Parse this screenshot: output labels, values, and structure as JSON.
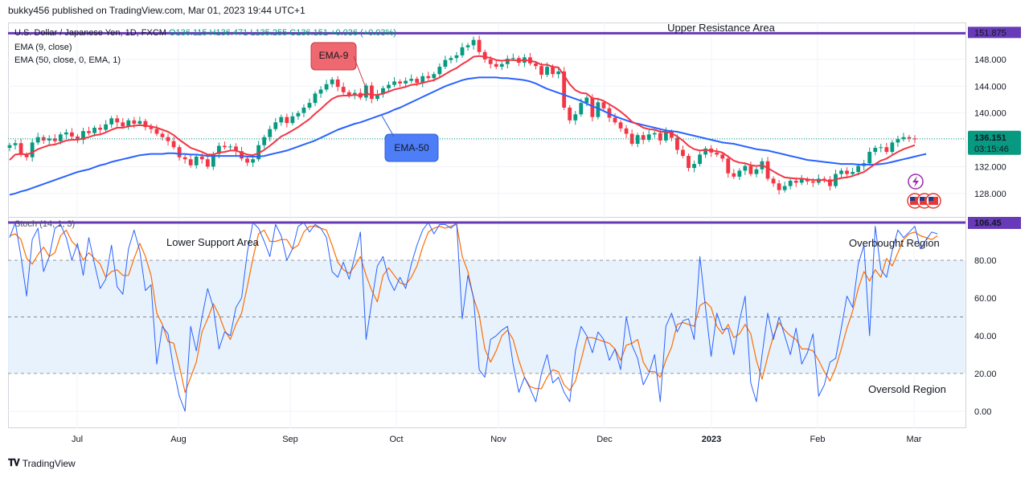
{
  "header": {
    "published_by": "bukky456 published on TradingView.com, Mar 01, 2023 19:44 UTC+1"
  },
  "legend": {
    "symbol": "U.S. Dollar / Japanese Yen, 1D, FXCM",
    "ohlc": "O136.115  H136.471  L135.255  C136.151  +0.036 (+0.03%)",
    "ema9": "EMA (9, close)",
    "ema50": "EMA (50, close, 0, EMA, 1)",
    "stoch": "Stoch (14, 1, 3)"
  },
  "footer": {
    "brand": "TradingView"
  },
  "colors": {
    "up": "#089981",
    "down": "#f23645",
    "ema9": "#f23645",
    "ema50": "#2962ff",
    "resistance": "#673ab7",
    "stoch_k": "#2962ff",
    "stoch_d": "#ff6d00",
    "band": "#e3f0fb"
  },
  "chart_data": [
    {
      "type": "candlestick",
      "title": "U.S. Dollar / Japanese Yen, 1D, FXCM",
      "currency": "JPY",
      "ylim": [
        124.5,
        153.5
      ],
      "y_ticks": [
        128.0,
        132.0,
        136.0,
        140.0,
        144.0,
        148.0
      ],
      "y_tick_labels": [
        "128.000",
        "132.000",
        "136.000",
        "140.000",
        "144.000",
        "148.000"
      ],
      "x_ticks": [
        "Jul",
        "Aug",
        "Sep",
        "Oct",
        "Nov",
        "Dec",
        "2023",
        "Feb",
        "Mar"
      ],
      "last_price": {
        "value": 136.151,
        "label": "136.151",
        "countdown": "03:15:46"
      },
      "resistance_level": {
        "value": 151.9,
        "label": "151.875",
        "annotation": "Upper Resistance Area"
      },
      "callouts": {
        "ema9": "EMA-9",
        "ema50": "EMA-50"
      },
      "series": [
        {
          "name": "Close",
          "values": [
            135.2,
            135.5,
            133.8,
            133.4,
            135.6,
            136.4,
            135.9,
            136.2,
            135.8,
            136.8,
            137.1,
            136.5,
            136.0,
            137.3,
            137.0,
            137.8,
            137.5,
            138.3,
            139.2,
            138.6,
            138.0,
            138.9,
            138.4,
            138.8,
            137.9,
            137.6,
            136.9,
            136.4,
            135.8,
            134.9,
            133.4,
            133.1,
            132.2,
            133.5,
            133.1,
            132.0,
            133.9,
            135.1,
            134.9,
            135.0,
            134.3,
            133.2,
            132.6,
            133.1,
            135.2,
            136.4,
            137.6,
            138.6,
            139.4,
            138.5,
            139.5,
            140.0,
            140.8,
            141.5,
            142.9,
            143.5,
            144.3,
            145.0,
            143.9,
            143.1,
            142.7,
            143.0,
            142.3,
            144.1,
            142.1,
            142.8,
            143.7,
            144.2,
            144.7,
            144.4,
            144.8,
            145.1,
            144.5,
            145.5,
            145.2,
            145.8,
            146.9,
            147.9,
            148.2,
            148.6,
            149.8,
            150.1,
            150.9,
            149.1,
            148.0,
            147.3,
            146.9,
            147.3,
            148.1,
            148.2,
            147.5,
            148.3,
            147.4,
            147.0,
            145.7,
            146.9,
            145.8,
            146.2,
            140.8,
            138.9,
            139.8,
            141.5,
            142.3,
            139.4,
            141.6,
            140.7,
            139.3,
            138.6,
            137.7,
            136.9,
            135.4,
            136.7,
            136.0,
            136.8,
            137.0,
            135.9,
            137.2,
            136.3,
            134.5,
            133.6,
            131.8,
            132.4,
            133.8,
            134.7,
            134.1,
            133.8,
            133.2,
            131.0,
            130.5,
            131.4,
            132.1,
            130.9,
            131.6,
            132.8,
            130.2,
            129.5,
            128.5,
            129.1,
            129.9,
            129.6,
            130.1,
            129.8,
            129.6,
            130.2,
            130.1,
            129.1,
            130.9,
            131.4,
            130.9,
            131.2,
            132.1,
            132.5,
            134.2,
            134.8,
            134.9,
            134.2,
            135.6,
            136.1,
            136.4,
            136.2,
            136.151
          ]
        },
        {
          "name": "EMA (9, close)",
          "values": [
            133.0,
            133.8,
            133.9,
            133.8,
            134.1,
            134.6,
            134.9,
            135.2,
            135.3,
            135.6,
            135.9,
            136.0,
            136.0,
            136.2,
            136.4,
            136.7,
            136.8,
            137.1,
            137.5,
            137.8,
            137.8,
            138.0,
            138.1,
            138.2,
            138.1,
            138.0,
            137.8,
            137.5,
            137.2,
            136.7,
            136.0,
            135.4,
            134.8,
            134.5,
            134.2,
            133.8,
            133.8,
            134.1,
            134.2,
            134.4,
            134.4,
            134.1,
            133.8,
            133.7,
            134.0,
            134.5,
            135.1,
            135.8,
            136.5,
            136.9,
            137.4,
            137.9,
            138.5,
            139.1,
            139.9,
            140.6,
            141.4,
            142.1,
            142.5,
            142.6,
            142.6,
            142.7,
            142.6,
            142.9,
            142.7,
            142.7,
            142.9,
            143.2,
            143.5,
            143.7,
            143.9,
            144.2,
            144.3,
            144.5,
            144.7,
            144.9,
            145.3,
            145.8,
            146.3,
            146.7,
            147.3,
            147.8,
            148.4,
            148.5,
            148.4,
            148.2,
            147.9,
            147.8,
            147.9,
            147.9,
            147.8,
            147.9,
            147.8,
            147.6,
            147.2,
            147.2,
            146.9,
            146.8,
            145.6,
            144.3,
            143.4,
            143.0,
            142.9,
            142.2,
            142.1,
            141.8,
            141.3,
            140.8,
            140.2,
            139.5,
            138.7,
            138.3,
            137.8,
            137.6,
            137.5,
            137.2,
            137.2,
            137.0,
            136.5,
            135.9,
            135.1,
            134.6,
            134.4,
            134.5,
            134.4,
            134.3,
            134.1,
            133.5,
            132.9,
            132.6,
            132.5,
            132.2,
            132.1,
            132.2,
            131.8,
            131.3,
            130.8,
            130.4,
            130.3,
            130.2,
            130.2,
            130.1,
            130.0,
            130.0,
            130.0,
            129.8,
            130.1,
            130.3,
            130.4,
            130.6,
            130.9,
            131.2,
            131.8,
            132.4,
            132.9,
            133.2,
            133.7,
            134.2,
            134.6,
            134.9,
            135.2
          ]
        },
        {
          "name": "EMA (50, close, 0, EMA, 1)",
          "values": [
            127.8,
            128.0,
            128.3,
            128.5,
            128.8,
            129.1,
            129.4,
            129.7,
            130.0,
            130.3,
            130.6,
            130.9,
            131.2,
            131.4,
            131.6,
            131.9,
            132.2,
            132.4,
            132.7,
            132.9,
            133.1,
            133.3,
            133.5,
            133.7,
            133.8,
            133.9,
            133.9,
            133.9,
            134.0,
            134.0,
            133.9,
            133.9,
            133.8,
            133.8,
            133.7,
            133.6,
            133.6,
            133.6,
            133.6,
            133.6,
            133.6,
            133.6,
            133.5,
            133.5,
            133.5,
            133.6,
            133.8,
            134.0,
            134.2,
            134.4,
            134.7,
            135.0,
            135.3,
            135.6,
            135.9,
            136.3,
            136.7,
            137.1,
            137.5,
            137.8,
            138.1,
            138.4,
            138.6,
            138.9,
            139.2,
            139.5,
            139.8,
            140.1,
            140.5,
            140.8,
            141.2,
            141.6,
            142.0,
            142.4,
            142.8,
            143.2,
            143.6,
            144.0,
            144.3,
            144.6,
            144.9,
            145.1,
            145.2,
            145.3,
            145.3,
            145.3,
            145.3,
            145.2,
            145.2,
            145.1,
            145.0,
            144.9,
            144.7,
            144.4,
            144.0,
            143.6,
            143.3,
            143.0,
            142.7,
            142.4,
            142.1,
            141.8,
            141.4,
            141.0,
            140.7,
            140.3,
            139.9,
            139.5,
            139.2,
            138.9,
            138.6,
            138.4,
            138.2,
            138.0,
            137.8,
            137.6,
            137.4,
            137.3,
            137.2,
            137.0,
            136.8,
            136.6,
            136.4,
            136.2,
            136.0,
            135.8,
            135.6,
            135.5,
            135.4,
            135.2,
            135.0,
            134.8,
            134.6,
            134.5,
            134.4,
            134.2,
            134.0,
            133.8,
            133.6,
            133.4,
            133.2,
            133.0,
            132.9,
            132.8,
            132.7,
            132.6,
            132.5,
            132.4,
            132.4,
            132.4,
            132.3,
            132.3,
            132.3,
            132.3,
            132.4,
            132.5,
            132.7,
            132.9,
            133.1,
            133.3,
            133.5,
            133.7,
            133.9
          ]
        }
      ]
    },
    {
      "type": "line",
      "title": "Stoch (14, 1, 3)",
      "ylim": [
        -9,
        103
      ],
      "y_ticks": [
        0,
        20,
        40,
        60,
        80,
        100
      ],
      "y_tick_labels": [
        "0.00",
        "20.00",
        "40.00",
        "60.00",
        "80.00",
        "100.00"
      ],
      "band": [
        20,
        80
      ],
      "midline": 50,
      "upper_level_label": "106.45",
      "annotations": [
        "Lower Support Area",
        "Overbought Region",
        "Oversold Region"
      ],
      "series": [
        {
          "name": "%K",
          "values": [
            92,
            100,
            82,
            61,
            91,
            97,
            74,
            82,
            97,
            99,
            92,
            80,
            89,
            72,
            92,
            78,
            65,
            70,
            88,
            66,
            62,
            86,
            96,
            85,
            64,
            67,
            25,
            45,
            41,
            22,
            8,
            0,
            45,
            32,
            50,
            65,
            55,
            33,
            42,
            40,
            55,
            60,
            84,
            100,
            97,
            90,
            82,
            99,
            93,
            80,
            86,
            98,
            100,
            95,
            99,
            97,
            92,
            74,
            71,
            79,
            70,
            82,
            95,
            38,
            58,
            77,
            82,
            70,
            64,
            71,
            65,
            78,
            88,
            96,
            100,
            94,
            99,
            99,
            97,
            100,
            49,
            72,
            60,
            22,
            18,
            38,
            40,
            43,
            45,
            25,
            10,
            18,
            12,
            5,
            20,
            30,
            15,
            18,
            10,
            5,
            32,
            45,
            40,
            31,
            42,
            38,
            27,
            33,
            22,
            50,
            35,
            28,
            14,
            20,
            30,
            5,
            45,
            52,
            42,
            48,
            49,
            38,
            82,
            55,
            29,
            52,
            43,
            44,
            30,
            48,
            61,
            15,
            5,
            30,
            52,
            38,
            50,
            40,
            30,
            44,
            25,
            31,
            41,
            8,
            14,
            26,
            28,
            44,
            61,
            55,
            78,
            88,
            40,
            98,
            75,
            71,
            85,
            96,
            92,
            95,
            98,
            86,
            91,
            95,
            94
          ]
        },
        {
          "name": "%D",
          "values": [
            93,
            94,
            91,
            81,
            78,
            83,
            87,
            82,
            84,
            93,
            96,
            90,
            87,
            80,
            84,
            81,
            78,
            71,
            74,
            75,
            72,
            72,
            81,
            89,
            82,
            72,
            52,
            46,
            37,
            36,
            24,
            10,
            18,
            26,
            42,
            49,
            57,
            51,
            43,
            38,
            46,
            52,
            66,
            81,
            94,
            96,
            90,
            90,
            91,
            91,
            86,
            88,
            95,
            98,
            98,
            97,
            96,
            88,
            79,
            75,
            73,
            77,
            82,
            72,
            64,
            58,
            72,
            76,
            72,
            68,
            67,
            71,
            77,
            87,
            95,
            97,
            98,
            97,
            98,
            99,
            82,
            74,
            60,
            51,
            33,
            26,
            32,
            40,
            43,
            38,
            27,
            18,
            13,
            12,
            12,
            18,
            22,
            21,
            14,
            11,
            16,
            27,
            39,
            39,
            38,
            37,
            36,
            33,
            27,
            35,
            36,
            38,
            26,
            21,
            21,
            18,
            27,
            34,
            46,
            47,
            46,
            45,
            56,
            58,
            55,
            45,
            41,
            46,
            39,
            41,
            46,
            41,
            27,
            17,
            29,
            40,
            47,
            43,
            40,
            38,
            33,
            33,
            32,
            27,
            21,
            16,
            23,
            33,
            44,
            53,
            65,
            74,
            69,
            75,
            71,
            81,
            77,
            84,
            91,
            94,
            95,
            93,
            92,
            91,
            93
          ]
        }
      ]
    }
  ]
}
